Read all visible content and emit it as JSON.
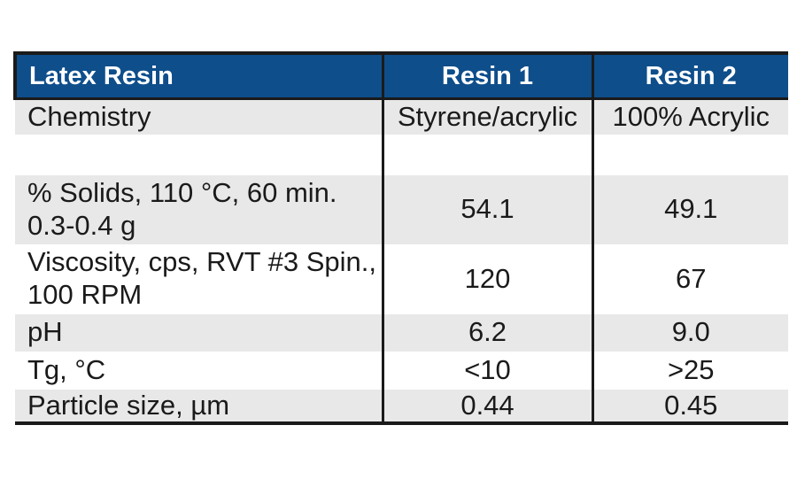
{
  "table": {
    "colors": {
      "header_bg": "#0e4e8b",
      "header_text": "#ffffff",
      "row_alt_bg": "#e8e8e8",
      "border": "#1a1a1a",
      "text": "#1a1a1a"
    },
    "header": {
      "col1": "Latex Resin",
      "col2": "Resin 1",
      "col3": "Resin 2"
    },
    "rows": [
      {
        "property": "Chemistry",
        "resin1": "Styrene/acrylic",
        "resin2": "100% Acrylic"
      },
      {
        "property": "",
        "resin1": "",
        "resin2": ""
      },
      {
        "property": "% Solids, 110 °C, 60 min.\n0.3-0.4 g",
        "resin1": "54.1",
        "resin2": "49.1"
      },
      {
        "property": "Viscosity, cps, RVT #3 Spin.,\n100 RPM",
        "resin1": "120",
        "resin2": "67"
      },
      {
        "property": "pH",
        "resin1": "6.2",
        "resin2": "9.0"
      },
      {
        "property": "Tg, °C",
        "resin1": "<10",
        "resin2": ">25"
      },
      {
        "property": "Particle size, µm",
        "resin1": "0.44",
        "resin2": "0.45"
      }
    ]
  }
}
